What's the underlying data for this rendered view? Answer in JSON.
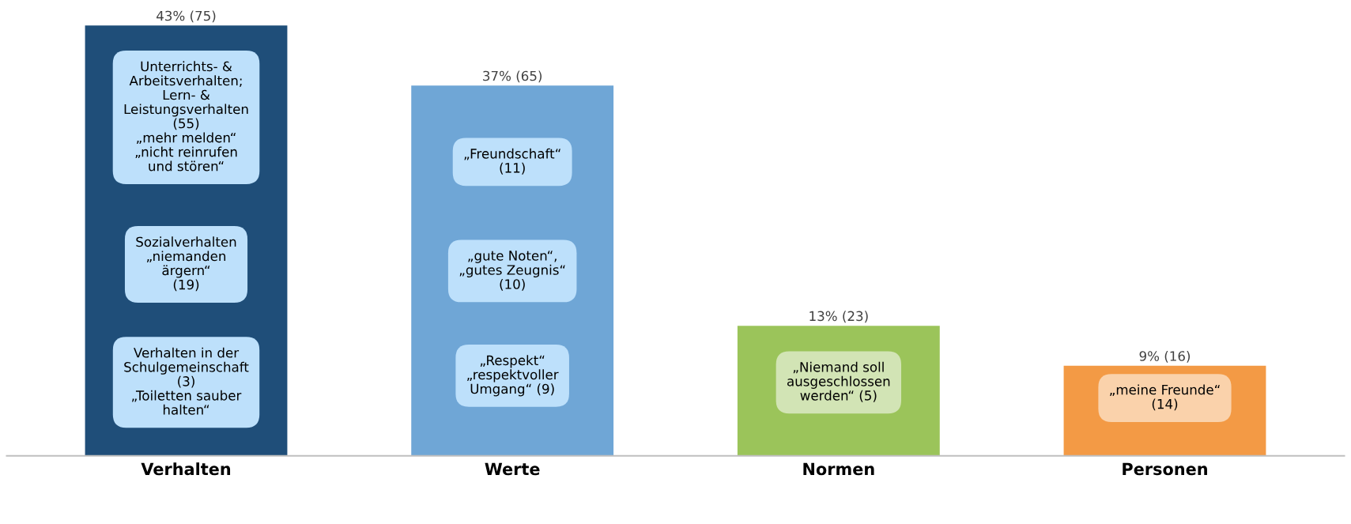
{
  "chart_data": {
    "type": "bar",
    "categories": [
      "Verhalten",
      "Werte",
      "Normen",
      "Personen"
    ],
    "values": [
      43,
      37,
      13,
      9
    ],
    "value_labels": [
      "43% (75)",
      "37% (65)",
      "13% (23)",
      "9% (16)"
    ],
    "colors": [
      "#1f4e79",
      "#6fa6d6",
      "#9bc45a",
      "#f39a45"
    ],
    "annotations": [
      "Unterrichts- &\nArbeitsverhalten;\nLern- &\nLeistungsverhalten\n(55)\n„mehr melden“\n„nicht reinrufen\nund stören“",
      "Sozialverhalten\n„niemanden\närgern“\n(19)",
      "Verhalten in der\nSchulgemeinschaft\n(3)\n„Toiletten sauber\nhalten“",
      "„Freundschaft“\n(11)",
      "„gute Noten“,\n„gutes Zeugnis“\n(10)",
      "„Respekt“\n„respektvoller\nUmgang“ (9)",
      "„Niemand soll\nausgeschlossen\nwerden“ (5)",
      "„meine Freunde“\n(14)"
    ]
  }
}
